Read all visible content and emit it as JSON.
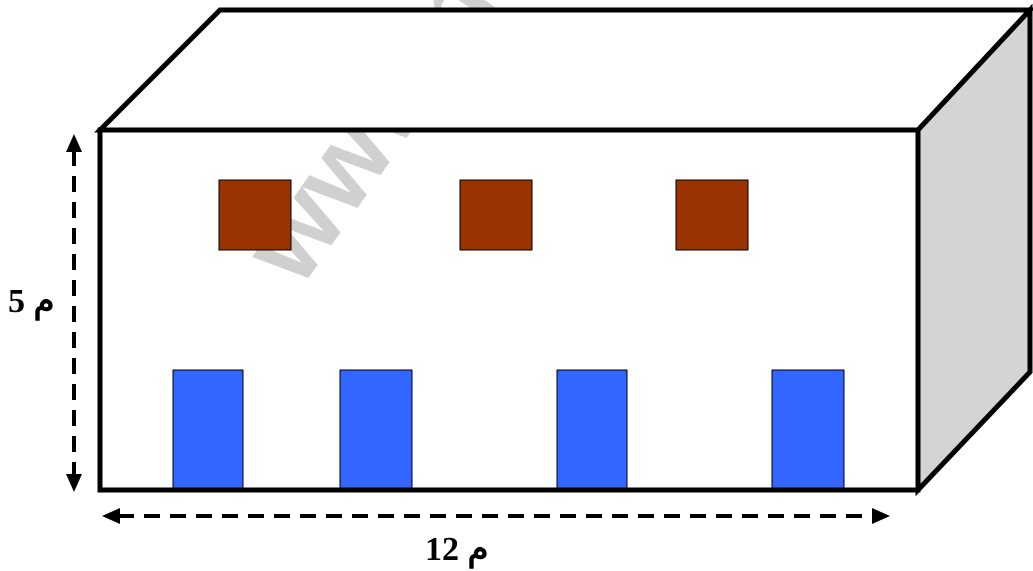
{
  "diagram": {
    "watermark_text": "www.n",
    "height_label": "5 م",
    "width_label": "12 م"
  },
  "colors": {
    "outline": "#000000",
    "front_face": "#ffffff",
    "top_face": "#ffffff",
    "side_face": "#d4d4d4",
    "window": "#993300",
    "door": "#3366ff",
    "watermark": "#c8c8c8"
  }
}
